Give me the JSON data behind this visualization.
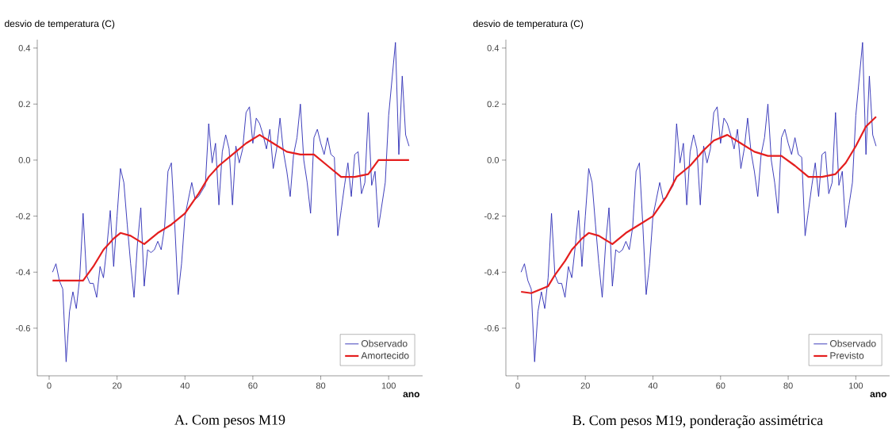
{
  "chart_data": [
    {
      "type": "line",
      "title": "A. Com pesos M19",
      "xlabel": "ano",
      "ylabel": "desvio de temperatura (C)",
      "x": [
        1,
        2,
        3,
        4,
        5,
        6,
        7,
        8,
        9,
        10,
        11,
        12,
        13,
        14,
        15,
        16,
        17,
        18,
        19,
        20,
        21,
        22,
        23,
        24,
        25,
        26,
        27,
        28,
        29,
        30,
        31,
        32,
        33,
        34,
        35,
        36,
        37,
        38,
        39,
        40,
        41,
        42,
        43,
        44,
        45,
        46,
        47,
        48,
        49,
        50,
        51,
        52,
        53,
        54,
        55,
        56,
        57,
        58,
        59,
        60,
        61,
        62,
        63,
        64,
        65,
        66,
        67,
        68,
        69,
        70,
        71,
        72,
        73,
        74,
        75,
        76,
        77,
        78,
        79,
        80,
        81,
        82,
        83,
        84,
        85,
        86,
        87,
        88,
        89,
        90,
        91,
        92,
        93,
        94,
        95,
        96,
        97,
        98,
        99,
        100,
        101,
        102,
        103,
        104,
        105,
        106
      ],
      "series": [
        {
          "name": "Observado",
          "color": "#2a2ab4",
          "values": [
            -0.4,
            -0.37,
            -0.43,
            -0.46,
            -0.72,
            -0.54,
            -0.47,
            -0.53,
            -0.42,
            -0.19,
            -0.41,
            -0.44,
            -0.44,
            -0.49,
            -0.38,
            -0.42,
            -0.31,
            -0.18,
            -0.38,
            -0.2,
            -0.03,
            -0.08,
            -0.23,
            -0.37,
            -0.49,
            -0.3,
            -0.17,
            -0.45,
            -0.32,
            -0.33,
            -0.32,
            -0.29,
            -0.32,
            -0.24,
            -0.04,
            -0.01,
            -0.23,
            -0.48,
            -0.37,
            -0.2,
            -0.14,
            -0.08,
            -0.14,
            -0.13,
            -0.11,
            -0.09,
            0.13,
            -0.01,
            0.06,
            -0.16,
            0.03,
            0.09,
            0.04,
            -0.16,
            0.05,
            -0.01,
            0.04,
            0.17,
            0.19,
            0.06,
            0.15,
            0.13,
            0.09,
            0.04,
            0.11,
            -0.03,
            0.04,
            0.15,
            0.03,
            -0.04,
            -0.13,
            0.02,
            0.08,
            0.2,
            0.0,
            -0.08,
            -0.19,
            0.08,
            0.11,
            0.06,
            0.02,
            0.08,
            0.02,
            0.01,
            -0.27,
            -0.18,
            -0.09,
            -0.01,
            -0.13,
            0.02,
            0.03,
            -0.12,
            -0.08,
            0.17,
            -0.09,
            -0.04,
            -0.24,
            -0.16,
            -0.08,
            0.16,
            0.29,
            0.42,
            0.02,
            0.3,
            0.09,
            0.05
          ]
        },
        {
          "name": "Amortecido",
          "color": "#e41e1e",
          "x": [
            1,
            10,
            13,
            16,
            19,
            21,
            24,
            28,
            32,
            36,
            40,
            44,
            47,
            50,
            54,
            58,
            62,
            66,
            70,
            74,
            78,
            82,
            86,
            90,
            94,
            97,
            106
          ],
          "values": [
            -0.43,
            -0.43,
            -0.38,
            -0.32,
            -0.28,
            -0.26,
            -0.27,
            -0.3,
            -0.26,
            -0.23,
            -0.19,
            -0.12,
            -0.06,
            -0.02,
            0.02,
            0.06,
            0.09,
            0.06,
            0.03,
            0.02,
            0.02,
            -0.02,
            -0.06,
            -0.06,
            -0.05,
            0.0,
            0.0
          ]
        }
      ],
      "xlim": [
        -3.5,
        110
      ],
      "ylim": [
        -0.77,
        0.43
      ],
      "xticks": [
        0,
        20,
        40,
        60,
        80,
        100
      ],
      "yticks": [
        -0.6,
        -0.4,
        -0.2,
        {
          "value": 0,
          "label": "0.0"
        },
        0.2,
        0.4
      ],
      "legend": "bottom right",
      "grid": false,
      "marker": "none"
    },
    {
      "type": "line",
      "title": "B. Com pesos M19, ponderação assimétrica",
      "xlabel": "ano",
      "ylabel": "desvio de temperatura (C)",
      "x": [
        1,
        2,
        3,
        4,
        5,
        6,
        7,
        8,
        9,
        10,
        11,
        12,
        13,
        14,
        15,
        16,
        17,
        18,
        19,
        20,
        21,
        22,
        23,
        24,
        25,
        26,
        27,
        28,
        29,
        30,
        31,
        32,
        33,
        34,
        35,
        36,
        37,
        38,
        39,
        40,
        41,
        42,
        43,
        44,
        45,
        46,
        47,
        48,
        49,
        50,
        51,
        52,
        53,
        54,
        55,
        56,
        57,
        58,
        59,
        60,
        61,
        62,
        63,
        64,
        65,
        66,
        67,
        68,
        69,
        70,
        71,
        72,
        73,
        74,
        75,
        76,
        77,
        78,
        79,
        80,
        81,
        82,
        83,
        84,
        85,
        86,
        87,
        88,
        89,
        90,
        91,
        92,
        93,
        94,
        95,
        96,
        97,
        98,
        99,
        100,
        101,
        102,
        103,
        104,
        105,
        106
      ],
      "series": [
        {
          "name": "Observado",
          "color": "#2a2ab4",
          "values": [
            -0.4,
            -0.37,
            -0.43,
            -0.46,
            -0.72,
            -0.54,
            -0.47,
            -0.53,
            -0.42,
            -0.19,
            -0.41,
            -0.44,
            -0.44,
            -0.49,
            -0.38,
            -0.42,
            -0.31,
            -0.18,
            -0.38,
            -0.2,
            -0.03,
            -0.08,
            -0.23,
            -0.37,
            -0.49,
            -0.3,
            -0.17,
            -0.45,
            -0.32,
            -0.33,
            -0.32,
            -0.29,
            -0.32,
            -0.24,
            -0.04,
            -0.01,
            -0.23,
            -0.48,
            -0.37,
            -0.2,
            -0.14,
            -0.08,
            -0.14,
            -0.13,
            -0.11,
            -0.09,
            0.13,
            -0.01,
            0.06,
            -0.16,
            0.03,
            0.09,
            0.04,
            -0.16,
            0.05,
            -0.01,
            0.04,
            0.17,
            0.19,
            0.06,
            0.15,
            0.13,
            0.09,
            0.04,
            0.11,
            -0.03,
            0.04,
            0.15,
            0.03,
            -0.04,
            -0.13,
            0.02,
            0.08,
            0.2,
            0.0,
            -0.08,
            -0.19,
            0.08,
            0.11,
            0.06,
            0.02,
            0.08,
            0.02,
            0.01,
            -0.27,
            -0.18,
            -0.09,
            -0.01,
            -0.13,
            0.02,
            0.03,
            -0.12,
            -0.08,
            0.17,
            -0.09,
            -0.04,
            -0.24,
            -0.16,
            -0.08,
            0.16,
            0.29,
            0.42,
            0.02,
            0.3,
            0.09,
            0.05
          ]
        },
        {
          "name": "Previsto",
          "color": "#e41e1e",
          "x": [
            1,
            4,
            7,
            9,
            11,
            14,
            16,
            19,
            21,
            24,
            28,
            32,
            36,
            40,
            44,
            47,
            51,
            55,
            58,
            62,
            66,
            70,
            74,
            78,
            82,
            86,
            90,
            94,
            97,
            100,
            103,
            106
          ],
          "values": [
            -0.47,
            -0.475,
            -0.46,
            -0.45,
            -0.41,
            -0.36,
            -0.32,
            -0.28,
            -0.26,
            -0.27,
            -0.3,
            -0.26,
            -0.23,
            -0.2,
            -0.13,
            -0.06,
            -0.02,
            0.035,
            0.07,
            0.09,
            0.06,
            0.03,
            0.015,
            0.015,
            -0.02,
            -0.06,
            -0.06,
            -0.05,
            -0.01,
            0.05,
            0.12,
            0.155
          ]
        }
      ],
      "xlim": [
        -3.5,
        110
      ],
      "ylim": [
        -0.77,
        0.43
      ],
      "xticks": [
        0,
        20,
        40,
        60,
        80,
        100
      ],
      "yticks": [
        -0.6,
        -0.4,
        -0.2,
        {
          "value": 0,
          "label": "0.0"
        },
        0.2,
        0.4
      ],
      "legend": "bottom right",
      "grid": false,
      "marker": "none"
    }
  ]
}
